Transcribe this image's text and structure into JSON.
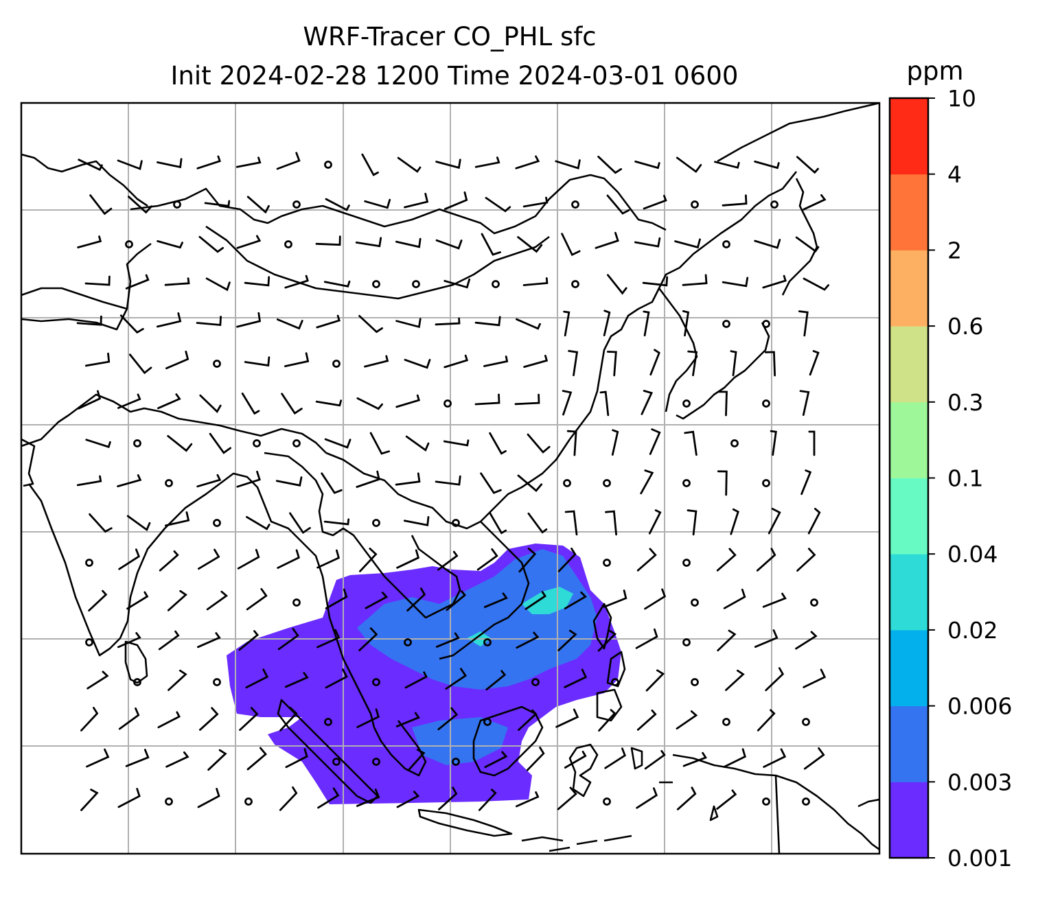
{
  "title": {
    "line1": "WRF-Tracer CO_PHL sfc",
    "line2": "Init 2024-02-28 1200 Time 2024-03-01 0600"
  },
  "colorbar": {
    "unit_label": "ppm",
    "levels": [
      "0.001",
      "0.003",
      "0.006",
      "0.02",
      "0.04",
      "0.1",
      "0.3",
      "0.6",
      "2",
      "4",
      "10"
    ],
    "colors": [
      "#6a2cff",
      "#3574f0",
      "#03b0ec",
      "#2edbd7",
      "#67fbc3",
      "#9ef89a",
      "#d0e287",
      "#feb062",
      "#ff7539",
      "#ff2b17"
    ]
  },
  "map": {
    "gridline_color": "#b0b0b0",
    "coastline_color": "#000000",
    "barb_color": "#000000",
    "plume_colors": {
      "lowest": "#6a2cff",
      "low": "#3574f0",
      "mid": "#2edbd7"
    }
  }
}
